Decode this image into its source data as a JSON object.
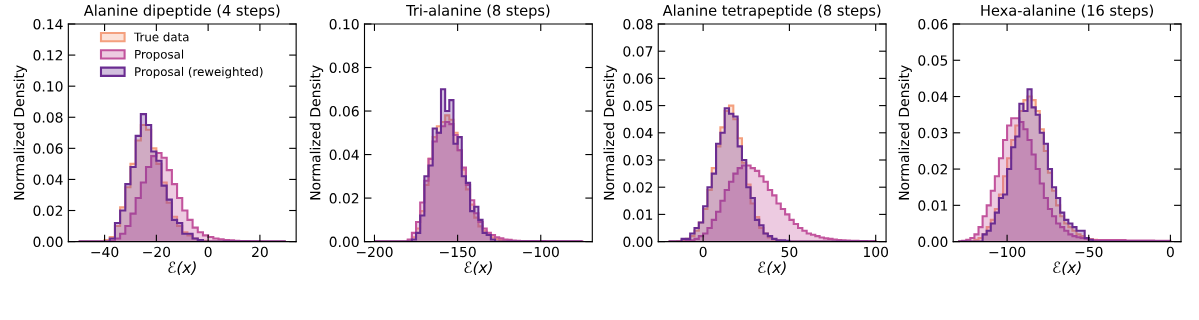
{
  "chart_data": [
    {
      "type": "histogram",
      "title": "Alanine dipeptide (4 steps)",
      "xlabel": "ℰ(x)",
      "ylabel": "Normalized Density",
      "legend": "top",
      "grid": false,
      "bins": [
        -50,
        -48,
        -46,
        -44,
        -42,
        -40,
        -38,
        -36,
        -34,
        -32,
        -30,
        -28,
        -26,
        -24,
        -22,
        -20,
        -18,
        -16,
        -14,
        -12,
        -10,
        -8,
        -6,
        -4,
        -2,
        0,
        2,
        4,
        6,
        8,
        10,
        12,
        14,
        16,
        18,
        20,
        22,
        24,
        26,
        28,
        30
      ],
      "xlim": [
        -54,
        34
      ],
      "xticks": [
        -40,
        -20,
        0,
        20
      ],
      "ylim": [
        0,
        0.14
      ],
      "yticks": [
        {
          "value": 0,
          "label": "0.00"
        },
        {
          "value": 0.02,
          "label": "0.02"
        },
        {
          "value": 0.04,
          "label": "0.04"
        },
        {
          "value": 0.06,
          "label": "0.06"
        },
        {
          "value": 0.08,
          "label": "0.08"
        },
        {
          "value": 0.1,
          "label": "0.10"
        },
        {
          "value": 0.12,
          "label": "0.12"
        },
        {
          "value": 0.14,
          "label": "0.14"
        }
      ],
      "series": [
        {
          "name": "True data",
          "color": "#f4a07e",
          "values": [
            0,
            0,
            0,
            0,
            0,
            0.001,
            0.003,
            0.01,
            0.022,
            0.035,
            0.05,
            0.065,
            0.075,
            0.072,
            0.06,
            0.05,
            0.038,
            0.025,
            0.016,
            0.01,
            0.006,
            0.004,
            0.002,
            0.001,
            0.0005,
            0,
            0,
            0,
            0,
            0,
            0,
            0,
            0,
            0,
            0,
            0,
            0,
            0,
            0,
            0
          ]
        },
        {
          "name": "Proposal",
          "color": "#c2549d",
          "values": [
            0,
            0,
            0,
            0,
            0,
            0,
            0.0005,
            0.002,
            0.005,
            0.01,
            0.018,
            0.028,
            0.038,
            0.048,
            0.055,
            0.057,
            0.054,
            0.046,
            0.037,
            0.028,
            0.02,
            0.014,
            0.009,
            0.006,
            0.004,
            0.003,
            0.002,
            0.0015,
            0.001,
            0.0008,
            0.0005,
            0.0004,
            0.0003,
            0.0002,
            0.0002,
            0.0001,
            0,
            0,
            0,
            0
          ]
        },
        {
          "name": "Proposal (reweighted)",
          "color": "#6a2c91",
          "values": [
            0,
            0,
            0,
            0,
            0,
            0,
            0.002,
            0.012,
            0.02,
            0.037,
            0.048,
            0.068,
            0.082,
            0.075,
            0.058,
            0.052,
            0.036,
            0.027,
            0.014,
            0.012,
            0.005,
            0.005,
            0.002,
            0.001,
            0,
            0,
            0,
            0,
            0,
            0,
            0,
            0,
            0,
            0,
            0,
            0,
            0,
            0,
            0,
            0
          ]
        }
      ]
    },
    {
      "type": "histogram",
      "title": "Tri-alanine (8 steps)",
      "xlabel": "ℰ(x)",
      "ylabel": "Normalized Density",
      "grid": false,
      "bins": [
        -200,
        -197.5,
        -195,
        -192.5,
        -190,
        -187.5,
        -185,
        -182.5,
        -180,
        -177.5,
        -175,
        -172.5,
        -170,
        -167.5,
        -165,
        -162.5,
        -160,
        -157.5,
        -155,
        -152.5,
        -150,
        -147.5,
        -145,
        -142.5,
        -140,
        -137.5,
        -135,
        -132.5,
        -130,
        -127.5,
        -125,
        -122.5,
        -120,
        -117.5,
        -115,
        -112.5,
        -110,
        -107.5,
        -105,
        -102.5,
        -100,
        -97.5,
        -95,
        -92.5,
        -90,
        -87.5,
        -85,
        -82.5,
        -80,
        -77.5,
        -75
      ],
      "xlim": [
        -206,
        -69
      ],
      "xticks": [
        -200,
        -150,
        -100
      ],
      "ylim": [
        0,
        0.1
      ],
      "yticks": [
        {
          "value": 0,
          "label": "0.00"
        },
        {
          "value": 0.02,
          "label": "0.02"
        },
        {
          "value": 0.04,
          "label": "0.04"
        },
        {
          "value": 0.06,
          "label": "0.06"
        },
        {
          "value": 0.08,
          "label": "0.08"
        },
        {
          "value": 0.1,
          "label": "0.10"
        }
      ],
      "series": [
        {
          "color": "#f4a07e",
          "values": [
            0,
            0,
            0,
            0,
            0,
            0,
            0,
            0,
            0.0005,
            0.002,
            0.006,
            0.014,
            0.026,
            0.038,
            0.048,
            0.053,
            0.055,
            0.058,
            0.056,
            0.05,
            0.042,
            0.033,
            0.024,
            0.017,
            0.011,
            0.007,
            0.005,
            0.003,
            0.002,
            0.0012,
            0.0008,
            0.0005,
            0.0003,
            0.0002,
            0.0001,
            0.0001,
            0.0001,
            0.0001,
            0.0001,
            0.0001,
            0.0001,
            0.0001,
            0.0001,
            0.0001,
            0,
            0,
            0,
            0,
            0,
            0
          ]
        },
        {
          "color": "#c2549d",
          "values": [
            0,
            0,
            0,
            0,
            0,
            0,
            0,
            0,
            0.001,
            0.004,
            0.009,
            0.018,
            0.028,
            0.038,
            0.046,
            0.05,
            0.053,
            0.055,
            0.054,
            0.049,
            0.042,
            0.034,
            0.026,
            0.019,
            0.013,
            0.009,
            0.006,
            0.004,
            0.003,
            0.002,
            0.0015,
            0.001,
            0.0008,
            0.0005,
            0.0004,
            0.0003,
            0.0002,
            0.0002,
            0.0002,
            0.0002,
            0.0002,
            0.0001,
            0.0001,
            0.0001,
            0.0001,
            0.0001,
            0.0001,
            0.0001,
            0.0001,
            0.0001
          ]
        },
        {
          "color": "#6a2c91",
          "values": [
            0,
            0,
            0,
            0,
            0,
            0,
            0,
            0,
            0,
            0.001,
            0.004,
            0.012,
            0.03,
            0.035,
            0.052,
            0.05,
            0.07,
            0.06,
            0.065,
            0.045,
            0.048,
            0.03,
            0.027,
            0.014,
            0.016,
            0.01,
            0.004,
            0.003,
            0.001,
            0,
            0,
            0,
            0,
            0,
            0,
            0,
            0,
            0,
            0,
            0,
            0,
            0,
            0,
            0,
            0,
            0,
            0,
            0,
            0,
            0
          ]
        }
      ]
    },
    {
      "type": "histogram",
      "title": "Alanine tetrapeptide (8 steps)",
      "xlabel": "ℰ(x)",
      "ylabel": "Normalized Density",
      "grid": false,
      "bins": [
        -20,
        -17.5,
        -15,
        -12.5,
        -10,
        -7.5,
        -5,
        -2.5,
        0,
        2.5,
        5,
        7.5,
        10,
        12.5,
        15,
        17.5,
        20,
        22.5,
        25,
        27.5,
        30,
        32.5,
        35,
        37.5,
        40,
        42.5,
        45,
        47.5,
        50,
        52.5,
        55,
        57.5,
        60,
        62.5,
        65,
        67.5,
        70,
        72.5,
        75,
        77.5,
        80,
        82.5,
        85,
        87.5,
        90,
        92.5,
        95,
        97.5,
        100
      ],
      "xlim": [
        -26,
        106
      ],
      "xticks": [
        0,
        50,
        100
      ],
      "ylim": [
        0,
        0.08
      ],
      "yticks": [
        {
          "value": 0,
          "label": "0.00"
        },
        {
          "value": 0.01,
          "label": "0.01"
        },
        {
          "value": 0.02,
          "label": "0.02"
        },
        {
          "value": 0.03,
          "label": "0.03"
        },
        {
          "value": 0.04,
          "label": "0.04"
        },
        {
          "value": 0.05,
          "label": "0.05"
        },
        {
          "value": 0.06,
          "label": "0.06"
        },
        {
          "value": 0.07,
          "label": "0.07"
        },
        {
          "value": 0.08,
          "label": "0.08"
        }
      ],
      "series": [
        {
          "color": "#f4a07e",
          "values": [
            0,
            0,
            0.0002,
            0.0005,
            0.001,
            0.002,
            0.004,
            0.007,
            0.012,
            0.019,
            0.027,
            0.035,
            0.042,
            0.048,
            0.05,
            0.045,
            0.038,
            0.029,
            0.021,
            0.014,
            0.009,
            0.005,
            0.003,
            0.0015,
            0.0008,
            0.0004,
            0.0002,
            0,
            0,
            0,
            0,
            0,
            0,
            0,
            0,
            0,
            0,
            0,
            0,
            0,
            0,
            0,
            0,
            0,
            0,
            0,
            0,
            0
          ]
        },
        {
          "color": "#c2549d",
          "values": [
            0,
            0,
            0,
            0,
            0.0002,
            0.0005,
            0.001,
            0.002,
            0.003,
            0.005,
            0.008,
            0.011,
            0.015,
            0.019,
            0.022,
            0.025,
            0.027,
            0.028,
            0.028,
            0.027,
            0.026,
            0.024,
            0.022,
            0.019,
            0.017,
            0.014,
            0.012,
            0.01,
            0.008,
            0.0065,
            0.005,
            0.004,
            0.003,
            0.0025,
            0.002,
            0.0015,
            0.0012,
            0.001,
            0.0008,
            0.0006,
            0.0005,
            0.0004,
            0.0003,
            0.0003,
            0.0002,
            0.0002,
            0.0001,
            0.0001
          ]
        },
        {
          "color": "#6a2c91",
          "values": [
            0,
            0,
            0,
            0.001,
            0.001,
            0.003,
            0.005,
            0.007,
            0.013,
            0.02,
            0.025,
            0.036,
            0.04,
            0.049,
            0.047,
            0.046,
            0.035,
            0.03,
            0.02,
            0.016,
            0.008,
            0.006,
            0.003,
            0.002,
            0.001,
            0.0005,
            0.0005,
            0.0003,
            0,
            0,
            0,
            0,
            0,
            0,
            0,
            0,
            0,
            0,
            0,
            0,
            0,
            0,
            0,
            0,
            0,
            0,
            0,
            0
          ]
        }
      ]
    },
    {
      "type": "histogram",
      "title": "Hexa-alanine (16 steps)",
      "xlabel": "ℰ(x)",
      "ylabel": "Normalized Density",
      "grid": false,
      "bins": [
        -130,
        -127.5,
        -125,
        -122.5,
        -120,
        -117.5,
        -115,
        -112.5,
        -110,
        -107.5,
        -105,
        -102.5,
        -100,
        -97.5,
        -95,
        -92.5,
        -90,
        -87.5,
        -85,
        -82.5,
        -80,
        -77.5,
        -75,
        -72.5,
        -70,
        -67.5,
        -65,
        -62.5,
        -60,
        -57.5,
        -55,
        -52.5,
        -50,
        -47.5,
        -45,
        -42.5,
        -40,
        -37.5,
        -35,
        -32.5,
        -30,
        -27.5,
        -25,
        -22.5,
        -20,
        -17.5,
        -15,
        -12.5,
        -10,
        -7.5,
        -5,
        -2.5,
        0
      ],
      "xlim": [
        -133,
        6.5
      ],
      "xticks": [
        -100,
        -50,
        0
      ],
      "ylim": [
        0,
        0.06
      ],
      "yticks": [
        {
          "value": 0,
          "label": "0.00"
        },
        {
          "value": 0.01,
          "label": "0.01"
        },
        {
          "value": 0.02,
          "label": "0.02"
        },
        {
          "value": 0.03,
          "label": "0.03"
        },
        {
          "value": 0.04,
          "label": "0.04"
        },
        {
          "value": 0.05,
          "label": "0.05"
        },
        {
          "value": 0.06,
          "label": "0.06"
        }
      ],
      "series": [
        {
          "color": "#f4a07e",
          "values": [
            0,
            0,
            0,
            0,
            0.0005,
            0.001,
            0.002,
            0.004,
            0.006,
            0.009,
            0.013,
            0.018,
            0.023,
            0.028,
            0.032,
            0.036,
            0.039,
            0.04,
            0.039,
            0.036,
            0.031,
            0.025,
            0.019,
            0.014,
            0.01,
            0.007,
            0.005,
            0.004,
            0.003,
            0.002,
            0.0015,
            0.001,
            0.0007,
            0.0005,
            0.0003,
            0.0002,
            0,
            0,
            0,
            0,
            0,
            0,
            0,
            0,
            0,
            0,
            0,
            0,
            0,
            0,
            0,
            0
          ]
        },
        {
          "color": "#c2549d",
          "values": [
            0,
            0.0002,
            0.0005,
            0.001,
            0.002,
            0.004,
            0.007,
            0.01,
            0.014,
            0.018,
            0.023,
            0.028,
            0.032,
            0.034,
            0.034,
            0.033,
            0.031,
            0.028,
            0.024,
            0.02,
            0.016,
            0.012,
            0.009,
            0.007,
            0.005,
            0.004,
            0.003,
            0.002,
            0.0015,
            0.0012,
            0.001,
            0.0008,
            0.0006,
            0.0004,
            0.0004,
            0.0004,
            0.0004,
            0.0004,
            0.0004,
            0.0004,
            0.0004,
            0.0003,
            0.0003,
            0.0003,
            0.0003,
            0.0003,
            0.0003,
            0.0003,
            0.0002,
            0.0002,
            0.0002,
            0.0002
          ]
        },
        {
          "color": "#6a2c91",
          "values": [
            0,
            0,
            0,
            0,
            0,
            0,
            0.002,
            0.003,
            0.005,
            0.008,
            0.012,
            0.013,
            0.02,
            0.026,
            0.029,
            0.038,
            0.036,
            0.042,
            0.037,
            0.035,
            0.03,
            0.027,
            0.02,
            0.015,
            0.012,
            0.008,
            0.006,
            0.005,
            0.004,
            0.003,
            0.003,
            0.001,
            0.0005,
            0,
            0,
            0,
            0,
            0,
            0,
            0,
            0,
            0,
            0,
            0,
            0,
            0,
            0,
            0,
            0,
            0,
            0,
            0
          ]
        }
      ]
    }
  ]
}
